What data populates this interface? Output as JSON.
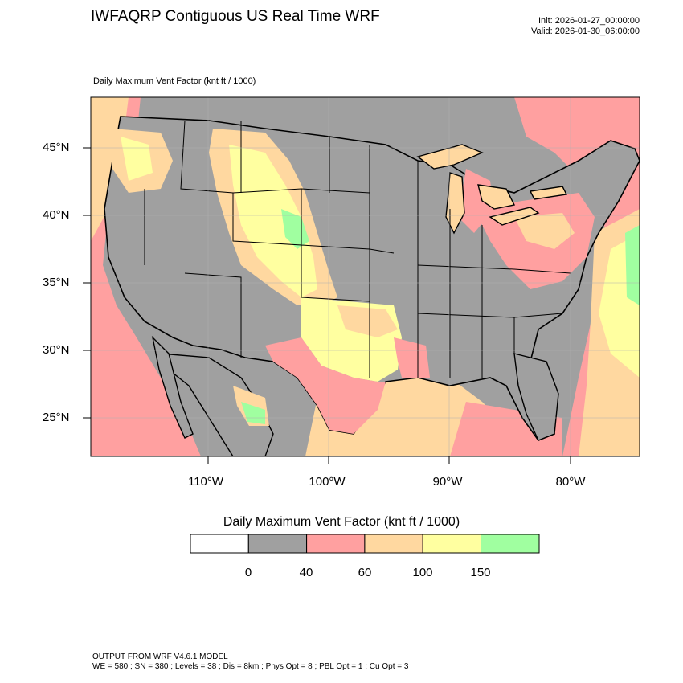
{
  "header": {
    "title": "IWFAQRP Contiguous US Real Time WRF",
    "init": "Init: 2026-01-27_00:00:00",
    "valid": "Valid: 2026-01-30_06:00:00"
  },
  "subtitle": "Daily Maximum Vent Factor   (knt ft / 1000)",
  "axes": {
    "lat_labels": [
      "45°N",
      "40°N",
      "35°N",
      "30°N",
      "25°N"
    ],
    "lon_labels": [
      "110°W",
      "100°W",
      "90°W",
      "80°W"
    ]
  },
  "colorbar": {
    "title": "Daily Maximum Vent Factor  (knt ft / 1000)",
    "tick_labels": [
      "0",
      "40",
      "60",
      "100",
      "150"
    ],
    "colors": [
      "#ffffff",
      "#a0a0a0",
      "#ffa0a0",
      "#ffd8a0",
      "#ffffa0",
      "#a0ffa0"
    ]
  },
  "palette": {
    "ocean": "#ffa0a0",
    "land": "#a0a0a0",
    "boundary": "#000000"
  },
  "footer": {
    "line1": "OUTPUT FROM WRF V4.6.1 MODEL",
    "line2": "WE = 580 ; SN = 380 ; Levels = 38 ; Dis = 8km ; Phys Opt = 8 ; PBL Opt = 1 ; Cu Opt = 3"
  }
}
